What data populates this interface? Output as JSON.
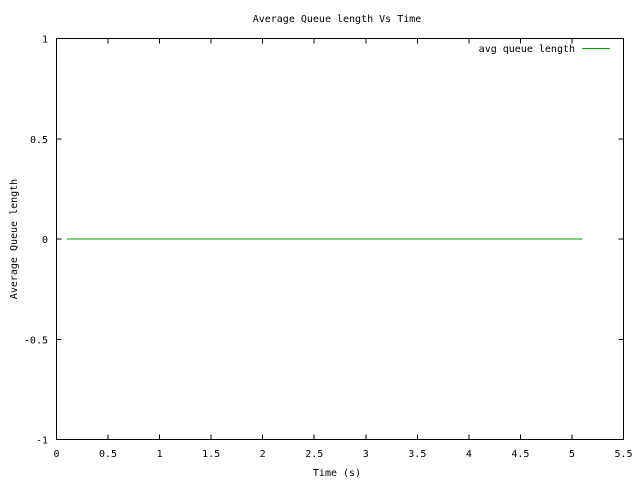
{
  "chart_data": {
    "type": "line",
    "title": "Average Queue length Vs  Time",
    "xlabel": "Time (s)",
    "ylabel": "Average Queue length",
    "xlim": [
      0,
      5.5
    ],
    "ylim": [
      -1,
      1
    ],
    "x_ticks": [
      "0",
      "0.5",
      "1",
      "1.5",
      "2",
      "2.5",
      "3",
      "3.5",
      "4",
      "4.5",
      "5",
      "5.5"
    ],
    "y_ticks": [
      "1",
      "0.5",
      "0",
      "-0.5",
      "-1"
    ],
    "grid": false,
    "legend_position": "top-right",
    "series": [
      {
        "name": "avg queue length",
        "color": "#00a000",
        "x": [
          0.1,
          5.1
        ],
        "y": [
          0,
          0
        ]
      }
    ]
  }
}
